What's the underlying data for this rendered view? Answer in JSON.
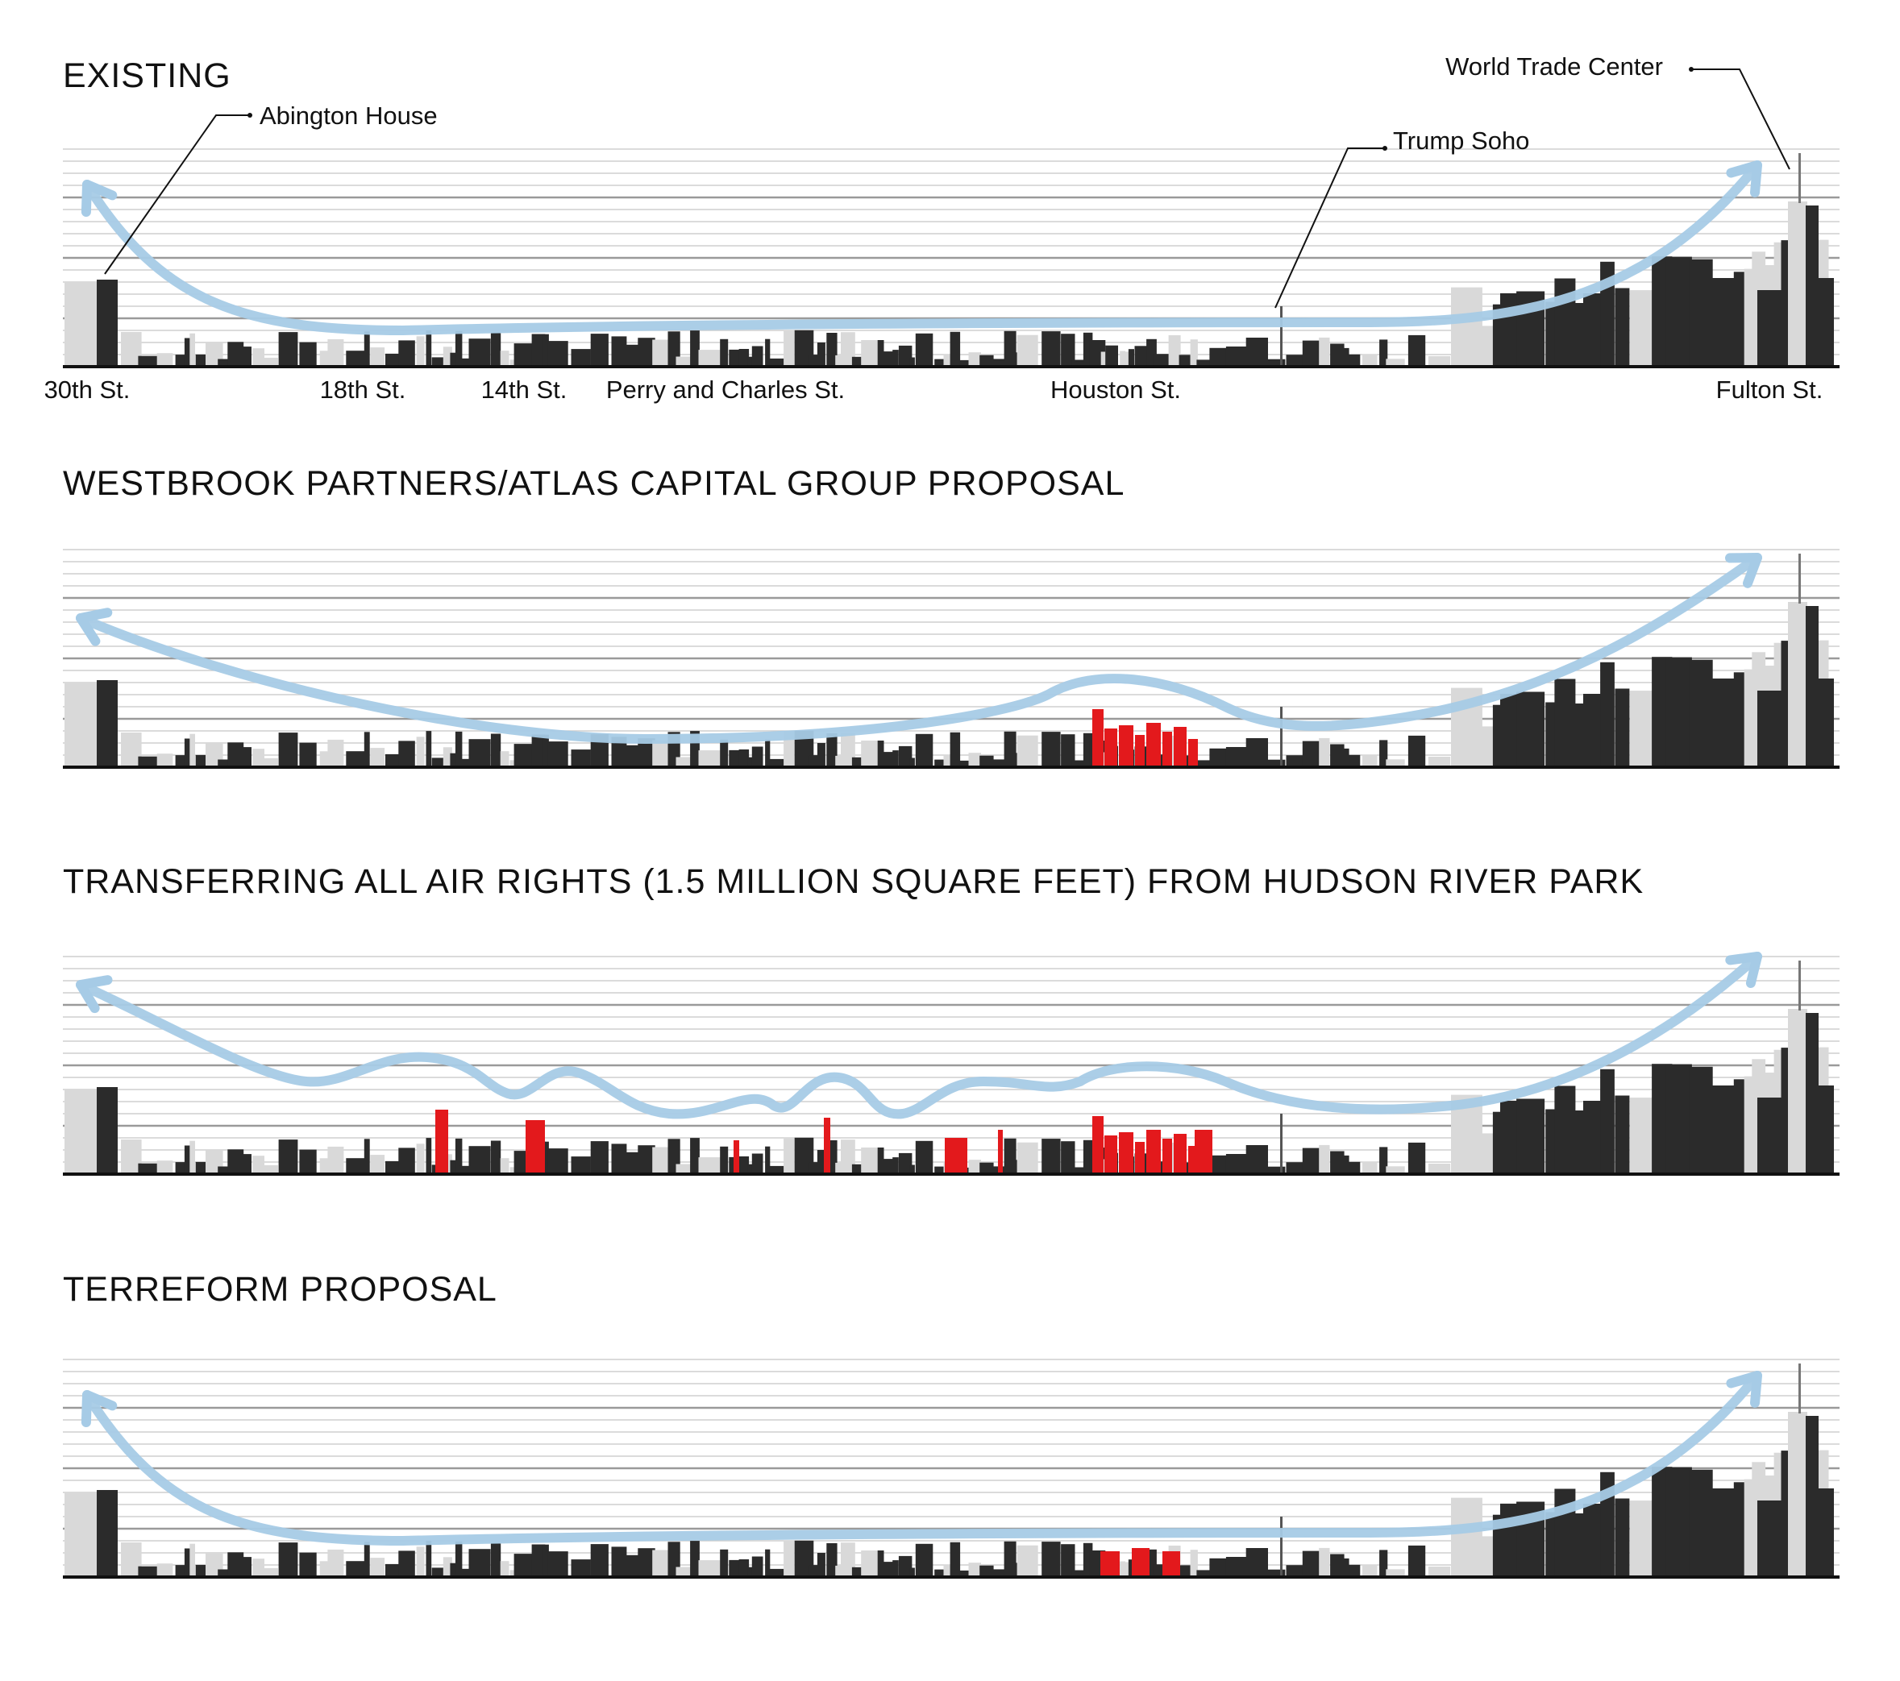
{
  "panels": [
    {
      "id": "existing",
      "title": "EXISTING",
      "flow": "u-shape",
      "highlight_groups": []
    },
    {
      "id": "westbrook",
      "title": "WESTBROOK PARTNERS/ATLAS CAPITAL GROUP PROPOSAL",
      "flow": "single-bump",
      "highlight_groups": [
        "houston-cluster"
      ]
    },
    {
      "id": "air-rights",
      "title": "TRANSFERRING ALL AIR RIGHTS (1.5 MILLION SQUARE FEET) FROM HUDSON RIVER PARK",
      "flow": "wavy",
      "highlight_groups": [
        "scattered-towers",
        "houston-cluster"
      ]
    },
    {
      "id": "terreform",
      "title": "TERREFORM PROPOSAL",
      "flow": "u-shape",
      "highlight_groups": [
        "low-block"
      ]
    }
  ],
  "annotations": {
    "abington": "Abington House",
    "trump": "Trump Soho",
    "wtc": "World Trade Center"
  },
  "streets": [
    "30th St.",
    "18th St.",
    "14th St.",
    "Perry and Charles St.",
    "Houston St.",
    "Fulton St."
  ],
  "colors": {
    "building_dark": "#2b2b2b",
    "building_light": "#d9d9d9",
    "proposal_red": "#e3191c",
    "flow_blue": "#a6cbe6",
    "grid_line": "#cfcfcf",
    "grid_line_major": "#9a9a9a",
    "ground": "#111111"
  }
}
